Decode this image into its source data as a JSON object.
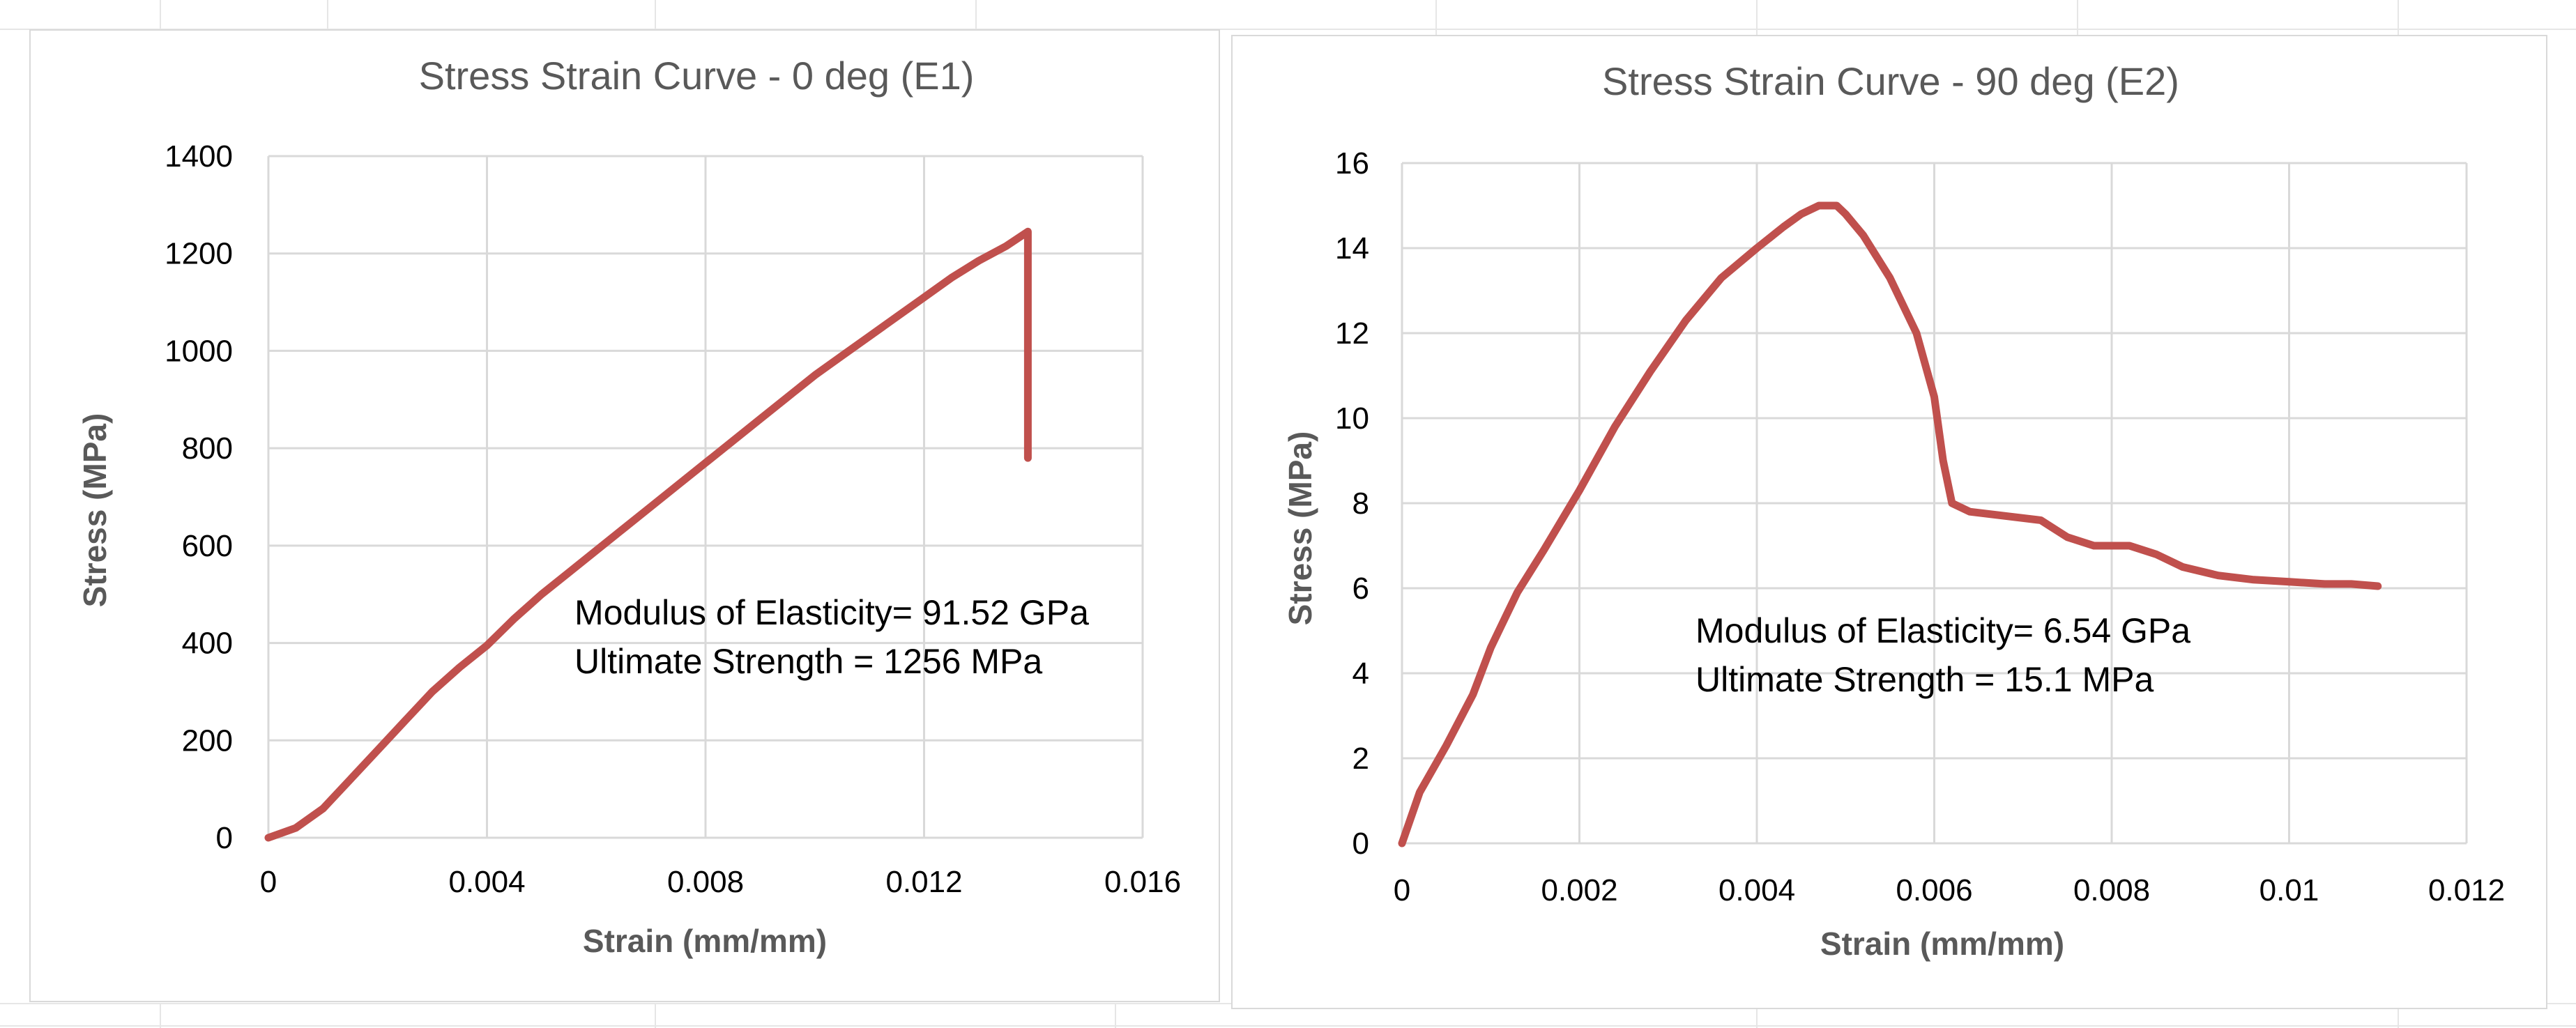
{
  "chart_data": [
    {
      "type": "line",
      "title": "Stress Strain Curve - 0 deg (E1)",
      "xlabel": "Strain (mm/mm)",
      "ylabel": "Stress (MPa)",
      "xlim": [
        0,
        0.016
      ],
      "ylim": [
        0,
        1400
      ],
      "x_ticks": [
        0,
        0.004,
        0.008,
        0.012,
        0.016
      ],
      "x_tick_labels": [
        "0",
        "0.004",
        "0.008",
        "0.012",
        "0.016"
      ],
      "y_ticks": [
        0,
        200,
        400,
        600,
        800,
        1000,
        1200,
        1400
      ],
      "y_tick_labels": [
        "0",
        "200",
        "400",
        "600",
        "800",
        "1000",
        "1200",
        "1400"
      ],
      "grid": true,
      "annotations": [
        "Modulus of Elasticity= 91.52 GPa",
        "Ultimate Strength = 1256 MPa"
      ],
      "series": [
        {
          "name": "0 deg",
          "color": "#c0504d",
          "x": [
            0,
            0.0005,
            0.001,
            0.0015,
            0.002,
            0.0025,
            0.003,
            0.0035,
            0.004,
            0.0045,
            0.005,
            0.0055,
            0.006,
            0.0065,
            0.007,
            0.0075,
            0.008,
            0.0085,
            0.009,
            0.0095,
            0.01,
            0.0105,
            0.011,
            0.0115,
            0.012,
            0.0125,
            0.013,
            0.0135,
            0.0139,
            0.0139,
            0.0139
          ],
          "y": [
            0,
            20,
            60,
            120,
            180,
            240,
            300,
            350,
            395,
            450,
            500,
            545,
            590,
            635,
            680,
            725,
            770,
            815,
            860,
            905,
            950,
            990,
            1030,
            1070,
            1110,
            1150,
            1185,
            1215,
            1245,
            1000,
            780
          ]
        }
      ]
    },
    {
      "type": "line",
      "title": "Stress Strain Curve - 90 deg (E2)",
      "xlabel": "Strain (mm/mm)",
      "ylabel": "Stress (MPa)",
      "xlim": [
        0,
        0.012
      ],
      "ylim": [
        0,
        16
      ],
      "x_ticks": [
        0,
        0.002,
        0.004,
        0.006,
        0.008,
        0.01,
        0.012
      ],
      "x_tick_labels": [
        "0",
        "0.002",
        "0.004",
        "0.006",
        "0.008",
        "0.01",
        "0.012"
      ],
      "y_ticks": [
        0,
        2,
        4,
        6,
        8,
        10,
        12,
        14,
        16
      ],
      "y_tick_labels": [
        "0",
        "2",
        "4",
        "6",
        "8",
        "10",
        "12",
        "14",
        "16"
      ],
      "grid": true,
      "annotations": [
        "Modulus of Elasticity= 6.54 GPa",
        "Ultimate Strength = 15.1 MPa"
      ],
      "series": [
        {
          "name": "90 deg",
          "color": "#c0504d",
          "x": [
            0,
            0.0002,
            0.0005,
            0.0008,
            0.001,
            0.0013,
            0.0016,
            0.002,
            0.0024,
            0.0028,
            0.0032,
            0.0036,
            0.004,
            0.0043,
            0.0045,
            0.0047,
            0.0049,
            0.005,
            0.0052,
            0.0055,
            0.0058,
            0.006,
            0.0061,
            0.0062,
            0.0064,
            0.0068,
            0.0072,
            0.0075,
            0.0078,
            0.0082,
            0.0085,
            0.0088,
            0.0092,
            0.0096,
            0.01,
            0.0104,
            0.0107,
            0.011
          ],
          "y": [
            0,
            1.2,
            2.3,
            3.5,
            4.6,
            5.9,
            6.9,
            8.3,
            9.8,
            11.1,
            12.3,
            13.3,
            14.0,
            14.5,
            14.8,
            15.0,
            15.0,
            14.8,
            14.3,
            13.3,
            12.0,
            10.5,
            9.0,
            8.0,
            7.8,
            7.7,
            7.6,
            7.2,
            7.0,
            7.0,
            6.8,
            6.5,
            6.3,
            6.2,
            6.15,
            6.1,
            6.1,
            6.05
          ]
        }
      ]
    }
  ]
}
